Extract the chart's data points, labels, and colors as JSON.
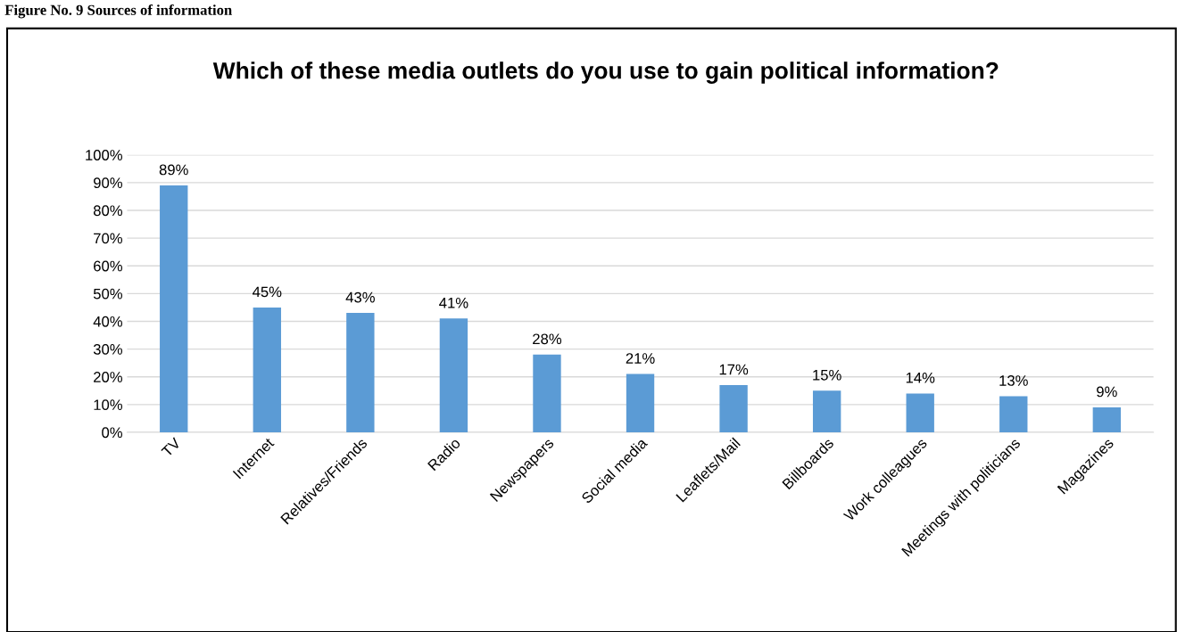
{
  "chart_data": {
    "type": "bar",
    "title": "Which of these media outlets do you use to gain political information?",
    "annotations": [
      "Figure No. 9 Sources of information"
    ],
    "categories": [
      "TV",
      "Internet",
      "Relatives/Friends",
      "Radio",
      "Newspapers",
      "Social media",
      "Leaflets/Mail",
      "Billboards",
      "Work colleagues",
      "Meetings with politicians",
      "Magazines"
    ],
    "values": [
      89,
      45,
      43,
      41,
      28,
      21,
      17,
      15,
      14,
      13,
      9
    ],
    "value_labels": [
      "89%",
      "45%",
      "43%",
      "41%",
      "28%",
      "21%",
      "17%",
      "15%",
      "14%",
      "13%",
      "9%"
    ],
    "color": "#5b9bd5",
    "ylim": [
      0,
      100
    ],
    "yticks": [
      {
        "value": 0,
        "label": "0%"
      },
      {
        "value": 10,
        "label": "10%"
      },
      {
        "value": 20,
        "label": "20%"
      },
      {
        "value": 30,
        "label": "30%"
      },
      {
        "value": 40,
        "label": "40%"
      },
      {
        "value": 50,
        "label": "50%"
      },
      {
        "value": 60,
        "label": "60%"
      },
      {
        "value": 70,
        "label": "70%"
      },
      {
        "value": 80,
        "label": "80%"
      },
      {
        "value": 90,
        "label": "90%"
      },
      {
        "value": 100,
        "label": "100%"
      }
    ],
    "grid": "y"
  }
}
